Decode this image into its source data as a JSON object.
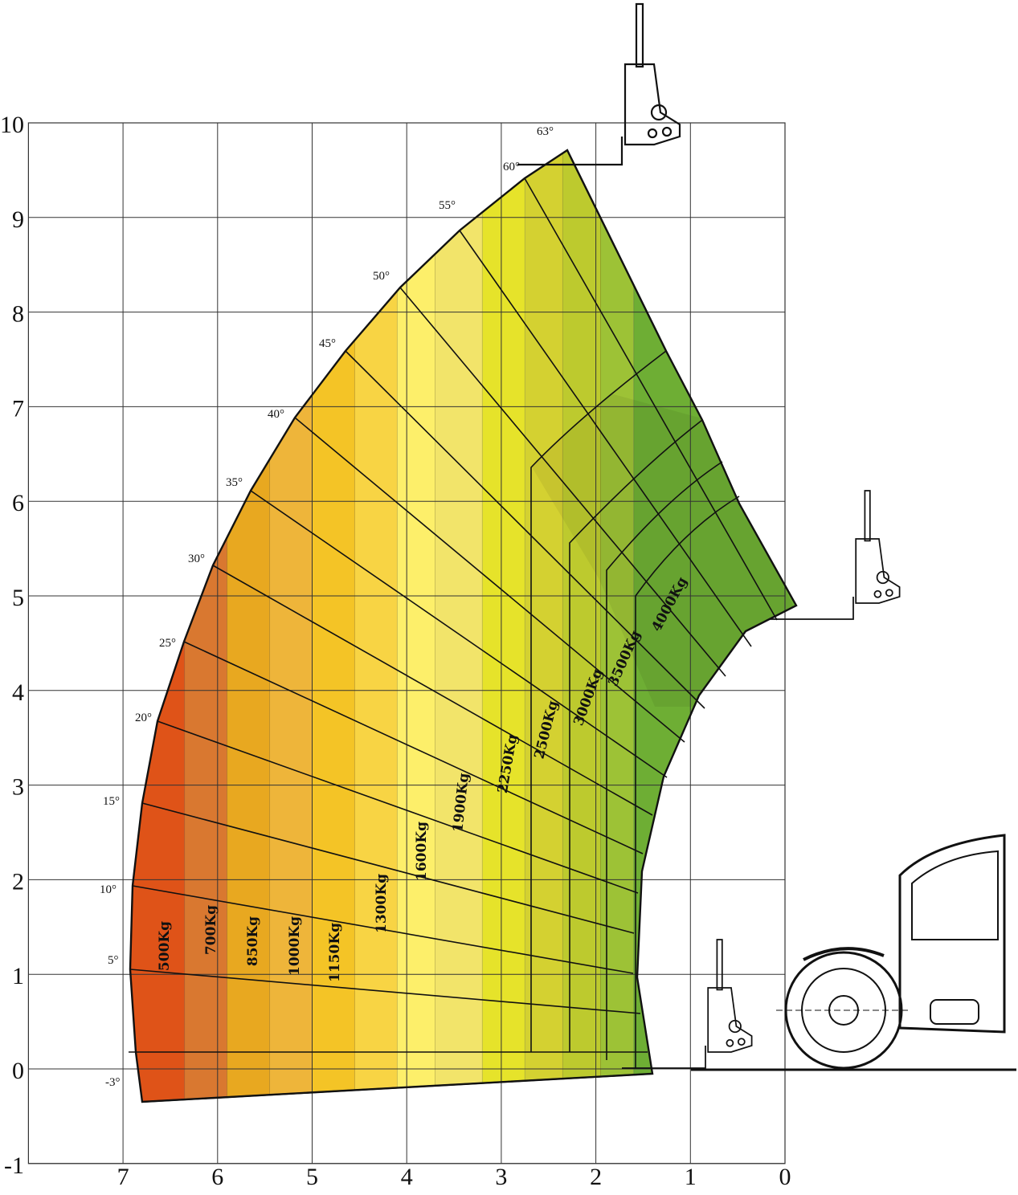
{
  "chart_data": {
    "type": "area",
    "title": "",
    "xlabel": "",
    "ylabel": "",
    "xlim": [
      7,
      0
    ],
    "ylim": [
      -1,
      10
    ],
    "x_ticks": [
      "7",
      "6",
      "5",
      "4",
      "3",
      "2",
      "1",
      "0"
    ],
    "y_ticks": [
      "10",
      "9",
      "8",
      "7",
      "6",
      "5",
      "4",
      "3",
      "2",
      "1",
      "0",
      "-1"
    ],
    "grid": true,
    "boom_angles": [
      {
        "label": "63°",
        "angle": 63
      },
      {
        "label": "60°",
        "angle": 60
      },
      {
        "label": "55°",
        "angle": 55
      },
      {
        "label": "50°",
        "angle": 50
      },
      {
        "label": "45°",
        "angle": 45
      },
      {
        "label": "40°",
        "angle": 40
      },
      {
        "label": "35°",
        "angle": 35
      },
      {
        "label": "30°",
        "angle": 30
      },
      {
        "label": "25°",
        "angle": 25
      },
      {
        "label": "20°",
        "angle": 20
      },
      {
        "label": "15°",
        "angle": 15
      },
      {
        "label": "10°",
        "angle": 10
      },
      {
        "label": "5°",
        "angle": 5
      },
      {
        "label": "-3°",
        "angle": -3
      }
    ],
    "load_zones": [
      {
        "label": "500Kg",
        "reach_max": 7.0,
        "reach_min": 6.35,
        "color": "#df5318"
      },
      {
        "label": "700Kg",
        "reach_max": 6.35,
        "reach_min": 5.9,
        "color": "#d97830"
      },
      {
        "label": "850Kg",
        "reach_max": 5.9,
        "reach_min": 5.45,
        "color": "#e8a820"
      },
      {
        "label": "1000Kg",
        "reach_max": 5.45,
        "reach_min": 5.0,
        "color": "#eeb53a"
      },
      {
        "label": "1150Kg",
        "reach_max": 5.0,
        "reach_min": 4.55,
        "color": "#f4c426"
      },
      {
        "label": "1300Kg",
        "reach_max": 4.55,
        "reach_min": 4.1,
        "color": "#f8d444"
      },
      {
        "label": "1600Kg",
        "reach_max": 4.1,
        "reach_min": 3.7,
        "color": "#fdef6a"
      },
      {
        "label": "1900Kg",
        "reach_max": 3.7,
        "reach_min": 3.2,
        "color": "#f2e46a"
      },
      {
        "label": "2250Kg",
        "reach_max": 3.2,
        "reach_min": 2.75,
        "color": "#e6e32a"
      },
      {
        "label": "2500Kg",
        "reach_max": 2.75,
        "reach_min": 2.35,
        "color": "#d4d131"
      },
      {
        "label": "3000Kg",
        "reach_max": 2.35,
        "reach_min": 1.95,
        "color": "#bdca2e"
      },
      {
        "label": "3500Kg",
        "reach_max": 1.95,
        "reach_min": 1.6,
        "color": "#9dc236"
      },
      {
        "label": "4000Kg",
        "reach_max": 1.6,
        "reach_min": 0.0,
        "color": "#6eae34"
      }
    ],
    "max_lift_height": 9.7,
    "max_reach_at_ground": 7.0
  }
}
